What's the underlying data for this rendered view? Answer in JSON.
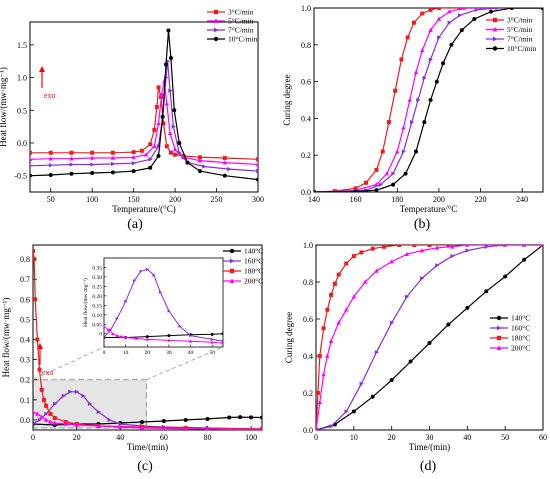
{
  "colors": {
    "red": "#ee1c1c",
    "magenta": "#ff00ff",
    "purple": "#8a2be2",
    "black": "#000000",
    "inset_box": "#e5e5e5",
    "exo": "#ff0000"
  },
  "chart_data": [
    {
      "type": "line",
      "panel_label": "(a)",
      "xlabel": "Temperature/(°C)",
      "ylabel": "Heat flow/(mw·mg⁻¹)",
      "xlim": [
        25,
        300
      ],
      "ylim": [
        -0.75,
        1.85
      ],
      "xticks": [
        50,
        100,
        150,
        200,
        250,
        300
      ],
      "yticks": [
        -0.5,
        0.0,
        0.5,
        1.0,
        1.5
      ],
      "legend_position": "top-right",
      "annotation": "exo",
      "series": [
        {
          "name": "3°C/min",
          "color": "red",
          "marker": "square",
          "x": [
            25,
            50,
            75,
            100,
            125,
            150,
            160,
            170,
            175,
            178,
            180,
            183,
            186,
            190,
            195,
            200,
            210,
            230,
            260,
            300
          ],
          "y": [
            -0.15,
            -0.15,
            -0.15,
            -0.15,
            -0.15,
            -0.14,
            -0.12,
            -0.02,
            0.2,
            0.55,
            0.85,
            0.7,
            0.3,
            -0.05,
            -0.15,
            -0.18,
            -0.2,
            -0.22,
            -0.23,
            -0.25
          ]
        },
        {
          "name": "5°C/min",
          "color": "magenta",
          "marker": "triangle-up",
          "x": [
            25,
            50,
            75,
            100,
            125,
            150,
            165,
            175,
            180,
            184,
            187,
            190,
            194,
            200,
            210,
            230,
            260,
            300
          ],
          "y": [
            -0.25,
            -0.24,
            -0.24,
            -0.23,
            -0.23,
            -0.22,
            -0.18,
            -0.05,
            0.3,
            0.75,
            0.95,
            0.6,
            0.15,
            -0.1,
            -0.22,
            -0.27,
            -0.3,
            -0.33
          ]
        },
        {
          "name": "7°C/min",
          "color": "purple",
          "marker": "triangle-right",
          "x": [
            25,
            50,
            75,
            100,
            125,
            150,
            170,
            180,
            185,
            189,
            191,
            194,
            198,
            205,
            215,
            235,
            265,
            300
          ],
          "y": [
            -0.35,
            -0.34,
            -0.33,
            -0.33,
            -0.32,
            -0.31,
            -0.25,
            -0.05,
            0.4,
            1.0,
            1.25,
            0.8,
            0.25,
            -0.15,
            -0.3,
            -0.36,
            -0.4,
            -0.43
          ]
        },
        {
          "name": "10°C/min",
          "color": "black",
          "marker": "circle",
          "x": [
            25,
            50,
            75,
            100,
            125,
            150,
            170,
            180,
            185,
            189,
            192,
            195,
            199,
            205,
            215,
            230,
            260,
            300
          ],
          "y": [
            -0.5,
            -0.49,
            -0.47,
            -0.46,
            -0.45,
            -0.43,
            -0.38,
            -0.2,
            0.4,
            1.2,
            1.72,
            1.3,
            0.5,
            0.0,
            -0.3,
            -0.43,
            -0.5,
            -0.56
          ]
        }
      ]
    },
    {
      "type": "line",
      "panel_label": "(b)",
      "xlabel": "Temperature/°C",
      "ylabel": "Curing degree",
      "xlim": [
        140,
        250
      ],
      "ylim": [
        0,
        1
      ],
      "xticks": [
        140,
        160,
        180,
        200,
        220,
        240
      ],
      "yticks": [
        0.0,
        0.2,
        0.4,
        0.6,
        0.8,
        1.0
      ],
      "legend_position": "upper-right",
      "series": [
        {
          "name": "3°C/min",
          "color": "red",
          "marker": "square",
          "x": [
            140,
            150,
            160,
            165,
            170,
            173,
            176,
            179,
            182,
            185,
            188,
            192,
            196,
            200,
            210,
            250
          ],
          "y": [
            0,
            0.005,
            0.02,
            0.05,
            0.12,
            0.22,
            0.38,
            0.55,
            0.72,
            0.84,
            0.92,
            0.97,
            0.99,
            1.0,
            1.0,
            1.0
          ]
        },
        {
          "name": "5°C/min",
          "color": "magenta",
          "marker": "triangle-up",
          "x": [
            140,
            150,
            160,
            170,
            175,
            180,
            183,
            186,
            189,
            192,
            196,
            200,
            205,
            212,
            220,
            250
          ],
          "y": [
            0,
            0.002,
            0.01,
            0.04,
            0.1,
            0.22,
            0.35,
            0.5,
            0.65,
            0.77,
            0.88,
            0.94,
            0.98,
            1.0,
            1.0,
            1.0
          ]
        },
        {
          "name": "7°C/min",
          "color": "purple",
          "marker": "triangle-right",
          "x": [
            140,
            155,
            165,
            172,
            178,
            183,
            187,
            190,
            193,
            196,
            200,
            205,
            210,
            218,
            228,
            250
          ],
          "y": [
            0,
            0.003,
            0.01,
            0.04,
            0.1,
            0.22,
            0.38,
            0.5,
            0.62,
            0.72,
            0.84,
            0.92,
            0.96,
            0.99,
            1.0,
            1.0
          ]
        },
        {
          "name": "10°C/min",
          "color": "black",
          "marker": "circle",
          "x": [
            140,
            160,
            170,
            178,
            184,
            189,
            193,
            196,
            199,
            202,
            206,
            211,
            217,
            225,
            235,
            250
          ],
          "y": [
            0,
            0.002,
            0.01,
            0.04,
            0.1,
            0.22,
            0.38,
            0.5,
            0.6,
            0.7,
            0.8,
            0.88,
            0.94,
            0.98,
            1.0,
            1.0
          ]
        }
      ]
    },
    {
      "type": "line",
      "panel_label": "(c)",
      "xlabel": "Time/(min)",
      "ylabel": "Heat flow/(mw·mg⁻¹)",
      "xlim": [
        0,
        105
      ],
      "ylim": [
        -0.05,
        0.87
      ],
      "xticks": [
        0,
        20,
        40,
        60,
        80,
        100
      ],
      "yticks": [
        0.0,
        0.1,
        0.2,
        0.3,
        0.4,
        0.5,
        0.6,
        0.7,
        0.8
      ],
      "legend_position": "top-right",
      "annotation": "exo",
      "highlight_box": {
        "x": [
          0,
          52
        ],
        "y": [
          -0.04,
          0.2
        ]
      },
      "series": [
        {
          "name": "140°C",
          "color": "black",
          "marker": "circle",
          "x": [
            0,
            10,
            20,
            30,
            40,
            50,
            60,
            70,
            80,
            90,
            95,
            100,
            105
          ],
          "y": [
            -0.02,
            -0.025,
            -0.02,
            -0.02,
            -0.015,
            -0.01,
            -0.005,
            0.0,
            0.005,
            0.012,
            0.014,
            0.013,
            0.012
          ]
        },
        {
          "name": "160°C",
          "color": "purple",
          "marker": "triangle-right",
          "x": [
            0,
            3,
            6,
            10,
            14,
            17,
            20,
            23,
            26,
            30,
            35,
            40,
            50,
            60,
            80,
            105
          ],
          "y": [
            -0.02,
            0.0,
            0.03,
            0.08,
            0.12,
            0.14,
            0.14,
            0.12,
            0.08,
            0.04,
            0.0,
            -0.02,
            -0.03,
            -0.035,
            -0.04,
            -0.045
          ]
        },
        {
          "name": "180°C",
          "color": "red",
          "marker": "square",
          "x": [
            0,
            0.5,
            1,
            2,
            3,
            4,
            5,
            6,
            8,
            10,
            15,
            20,
            30,
            50,
            70,
            105
          ],
          "y": [
            0.84,
            0.8,
            0.6,
            0.4,
            0.25,
            0.15,
            0.1,
            0.07,
            0.03,
            0.01,
            -0.01,
            -0.02,
            -0.03,
            -0.035,
            -0.04,
            -0.045
          ]
        },
        {
          "name": "200°C",
          "color": "magenta",
          "marker": "triangle-up",
          "x": [
            0,
            2,
            4,
            6,
            8,
            10,
            15,
            20,
            30,
            40,
            50,
            60,
            80,
            105
          ],
          "y": [
            0.04,
            0.03,
            0.015,
            0.0,
            -0.01,
            -0.015,
            -0.02,
            -0.025,
            -0.03,
            -0.035,
            -0.04,
            -0.042,
            -0.045,
            -0.05
          ]
        }
      ],
      "inset": {
        "xlim": [
          0,
          55
        ],
        "ylim": [
          -0.07,
          0.4
        ],
        "xticks": [
          0,
          10,
          20,
          30,
          40,
          50
        ],
        "yticks": [
          0.0,
          0.05,
          0.1,
          0.15,
          0.2,
          0.25,
          0.3,
          0.35
        ],
        "ylabel": "Heat flow/(mw·mg⁻¹)",
        "series": [
          {
            "color": "black",
            "marker": "circle",
            "x": [
              0,
              10,
              20,
              30,
              40,
              50,
              55
            ],
            "y": [
              -0.02,
              -0.02,
              -0.015,
              -0.01,
              -0.005,
              -0.003,
              0.0
            ]
          },
          {
            "color": "purple",
            "marker": "triangle-right",
            "x": [
              0,
              3,
              6,
              10,
              14,
              17,
              20,
              23,
              26,
              30,
              35,
              40,
              50,
              55
            ],
            "y": [
              -0.02,
              0.02,
              0.08,
              0.17,
              0.28,
              0.33,
              0.34,
              0.31,
              0.22,
              0.12,
              0.04,
              -0.01,
              -0.03,
              -0.04
            ]
          },
          {
            "color": "magenta",
            "marker": "triangle-up",
            "x": [
              0,
              2,
              4,
              6,
              8,
              10,
              15,
              20,
              30,
              40,
              50,
              55
            ],
            "y": [
              0.04,
              0.02,
              0.0,
              -0.01,
              -0.015,
              -0.02,
              -0.025,
              -0.03,
              -0.035,
              -0.04,
              -0.045,
              -0.05
            ]
          }
        ]
      }
    },
    {
      "type": "line",
      "panel_label": "(d)",
      "xlabel": "Time/(min)",
      "ylabel": "Curing degree",
      "xlim": [
        0,
        60
      ],
      "ylim": [
        0,
        1
      ],
      "xticks": [
        0,
        10,
        20,
        30,
        40,
        50,
        60
      ],
      "yticks": [
        0.0,
        0.2,
        0.4,
        0.6,
        0.8,
        1.0
      ],
      "legend_position": "center-right",
      "series": [
        {
          "name": "140°C",
          "color": "black",
          "marker": "circle",
          "x": [
            0,
            5,
            10,
            15,
            20,
            25,
            30,
            35,
            40,
            45,
            50,
            55,
            60
          ],
          "y": [
            0,
            0.03,
            0.1,
            0.18,
            0.27,
            0.37,
            0.47,
            0.57,
            0.66,
            0.75,
            0.83,
            0.92,
            1.0
          ]
        },
        {
          "name": "160°C",
          "color": "purple",
          "marker": "triangle-right",
          "x": [
            0,
            4,
            8,
            12,
            16,
            20,
            24,
            28,
            32,
            36,
            40,
            45,
            50,
            55,
            60
          ],
          "y": [
            0,
            0.02,
            0.1,
            0.25,
            0.42,
            0.58,
            0.72,
            0.82,
            0.89,
            0.94,
            0.97,
            0.99,
            1.0,
            1.0,
            1.0
          ]
        },
        {
          "name": "180°C",
          "color": "red",
          "marker": "square",
          "x": [
            0,
            0.5,
            1,
            2,
            3,
            4,
            5,
            6,
            8,
            10,
            12,
            15,
            18,
            22,
            26,
            30,
            35
          ],
          "y": [
            0,
            0.2,
            0.4,
            0.55,
            0.65,
            0.73,
            0.79,
            0.84,
            0.9,
            0.94,
            0.96,
            0.98,
            0.99,
            1.0,
            1.0,
            1.0,
            1.0
          ]
        },
        {
          "name": "200°C",
          "color": "magenta",
          "marker": "triangle-up",
          "x": [
            0,
            1,
            2,
            3,
            4,
            6,
            8,
            10,
            13,
            16,
            20,
            24,
            28,
            32,
            36,
            40,
            45,
            50,
            55,
            60
          ],
          "y": [
            0,
            0.15,
            0.3,
            0.4,
            0.48,
            0.58,
            0.65,
            0.72,
            0.8,
            0.86,
            0.91,
            0.95,
            0.97,
            0.985,
            0.99,
            1.0,
            1.0,
            1.0,
            1.0,
            1.0
          ]
        }
      ]
    }
  ]
}
